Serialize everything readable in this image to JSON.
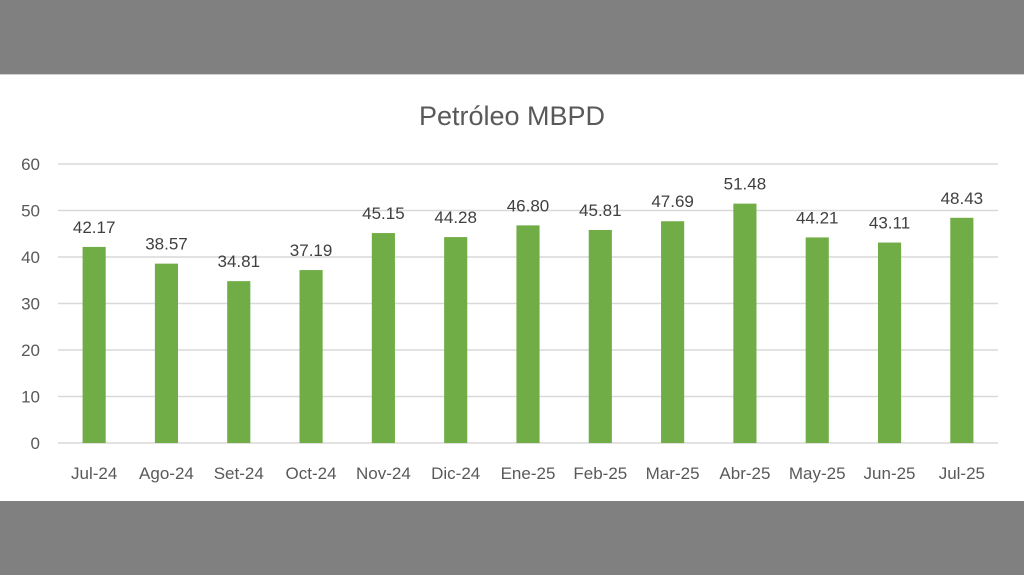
{
  "chart_data": {
    "type": "bar",
    "title": "Petróleo MBPD",
    "xlabel": "",
    "ylabel": "",
    "categories": [
      "Jul-24",
      "Ago-24",
      "Set-24",
      "Oct-24",
      "Nov-24",
      "Dic-24",
      "Ene-25",
      "Feb-25",
      "Mar-25",
      "Abr-25",
      "May-25",
      "Jun-25",
      "Jul-25"
    ],
    "values": [
      42.17,
      38.57,
      34.81,
      37.19,
      45.15,
      44.28,
      46.8,
      45.81,
      47.69,
      51.48,
      44.21,
      43.11,
      48.43
    ],
    "value_labels": [
      "42.17",
      "38.57",
      "34.81",
      "37.19",
      "45.15",
      "44.28",
      "46.80",
      "45.81",
      "47.69",
      "51.48",
      "44.21",
      "43.11",
      "48.43"
    ],
    "ylim": [
      0,
      60
    ],
    "yticks": [
      0,
      10,
      20,
      30,
      40,
      50,
      60
    ],
    "grid": true,
    "legend": "none",
    "bar_color": "#70ad47",
    "grid_color": "#d9d9d9",
    "text_color": "#595959"
  }
}
